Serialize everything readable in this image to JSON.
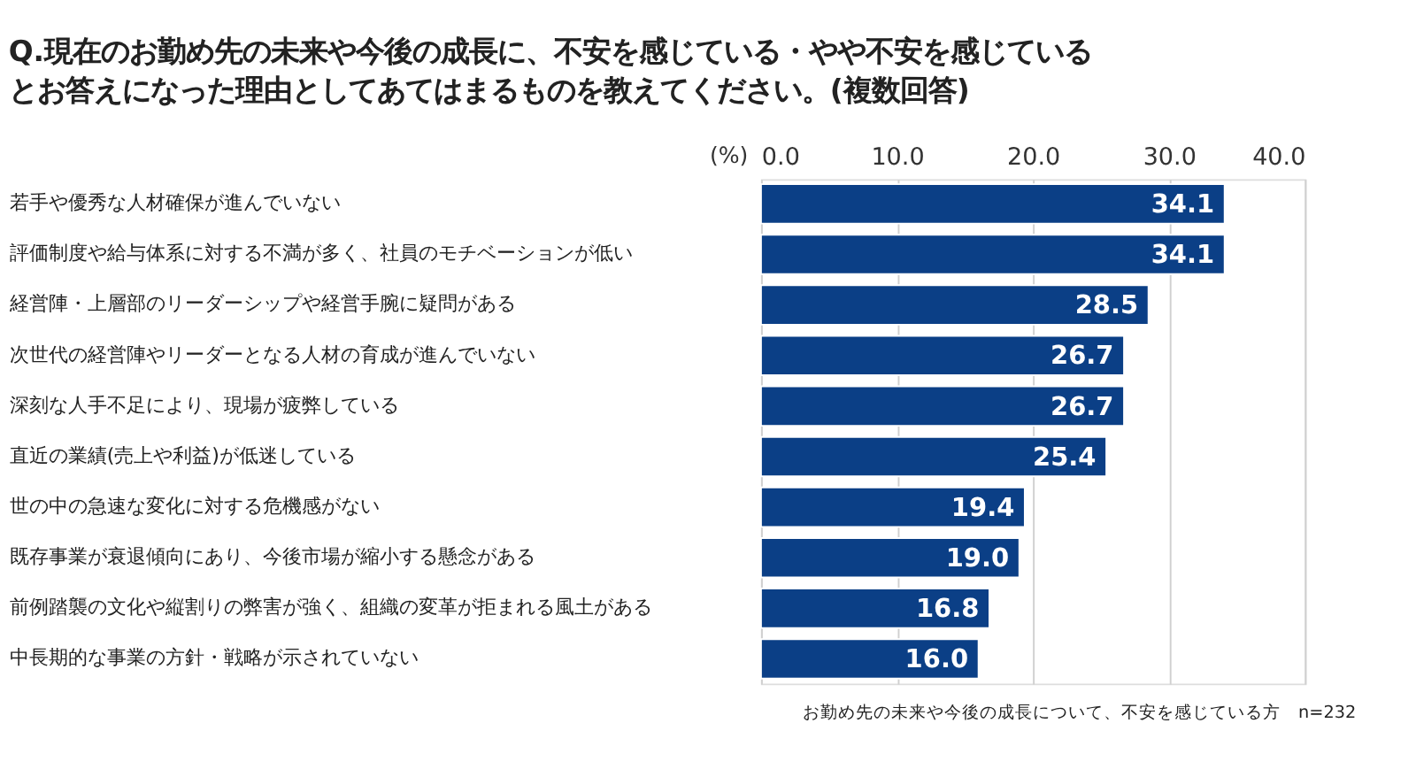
{
  "chart_data": {
    "type": "bar",
    "orientation": "horizontal",
    "title": "Q.現在のお勤め先の未来や今後の成長に、不安を感じている・やや不安を感じているとお答えになった理由としてあてはまるものを教えてください。(複数回答)",
    "xlabel": "(%)",
    "categories": [
      "若手や優秀な人材確保が進んでいない",
      "評価制度や給与体系に対する不満が多く、社員のモチベーションが低い",
      "経営陣・上層部のリーダーシップや経営手腕に疑問がある",
      "次世代の経営陣やリーダーとなる人材の育成が進んでいない",
      "深刻な人手不足により、現場が疲弊している",
      "直近の業績(売上や利益)が低迷している",
      "世の中の急速な変化に対する危機感がない",
      "既存事業が衰退傾向にあり、今後市場が縮小する懸念がある",
      "前例踏襲の文化や縦割りの弊害が強く、組織の変革が拒まれる風土がある",
      "中長期的な事業の方針・戦略が示されていない"
    ],
    "values": [
      34.1,
      34.1,
      28.5,
      26.7,
      26.7,
      25.4,
      19.4,
      19.0,
      16.8,
      16.0
    ],
    "value_labels": [
      "34.1",
      "34.1",
      "28.5",
      "26.7",
      "26.7",
      "25.4",
      "19.4",
      "19.0",
      "16.8",
      "16.0"
    ],
    "color": "#0b3f86",
    "xlim": [
      0,
      40
    ],
    "xticks": [
      {
        "value": 0,
        "label": "0.0"
      },
      {
        "value": 10,
        "label": "10.0"
      },
      {
        "value": 20,
        "label": "20.0"
      },
      {
        "value": 30,
        "label": "30.0"
      },
      {
        "value": 40,
        "label": "40.0"
      }
    ],
    "grid": "x",
    "annotations": [
      "お勤め先の未来や今後の成長について、不安を感じている方　n=232"
    ]
  }
}
